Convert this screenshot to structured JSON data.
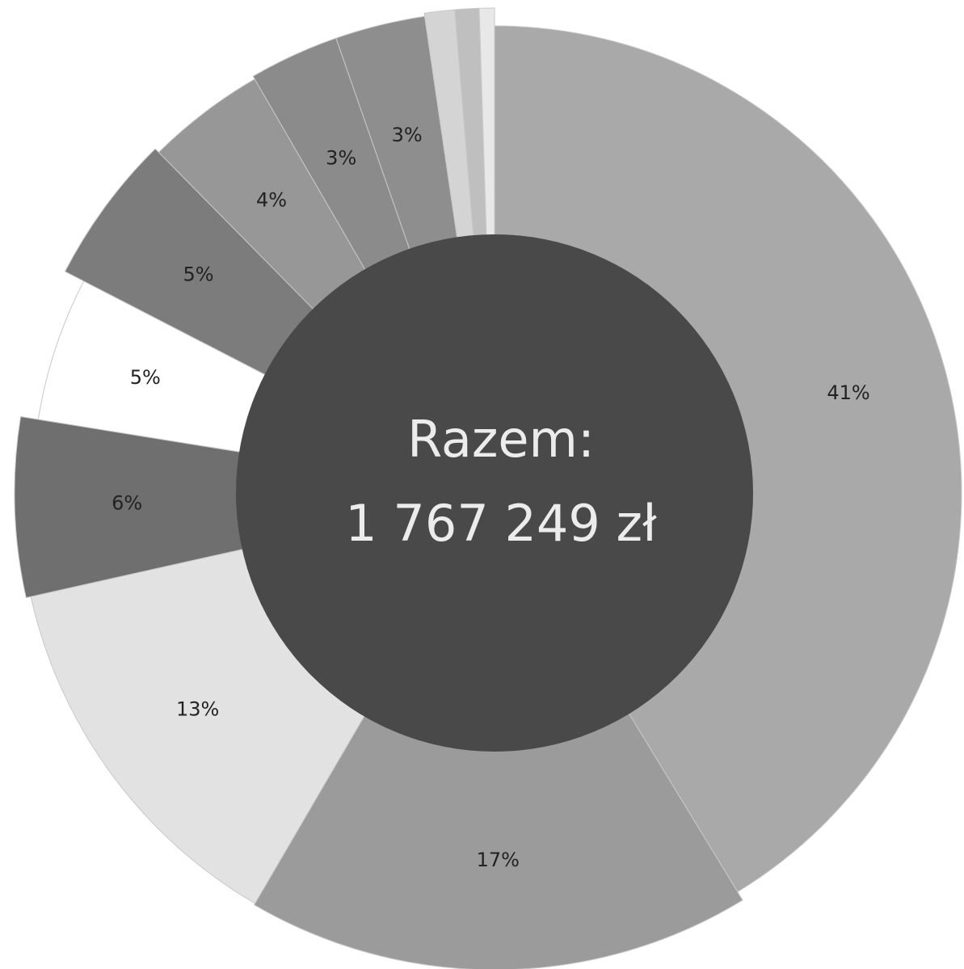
{
  "chart_data": {
    "type": "donut",
    "center_title": "Razem:",
    "center_value": "1 767 249 zł",
    "values": [
      41,
      17,
      13,
      6,
      5,
      5,
      4,
      3,
      3,
      1,
      0.8,
      0.5
    ],
    "value_labels": [
      "41%",
      "17%",
      "13%",
      "6%",
      "5%",
      "5%",
      "4%",
      "3%",
      "3%",
      null,
      null,
      null
    ],
    "colors": [
      "#a9a9a9",
      "#9b9b9b",
      "#e2e2e2",
      "#6f6f6f",
      "#ffffff",
      "#7c7c7c",
      "#979797",
      "#8b8b8b",
      "#8e8e8e",
      "#d4d4d4",
      "#bfbfbf",
      "#e8e8e8"
    ]
  }
}
